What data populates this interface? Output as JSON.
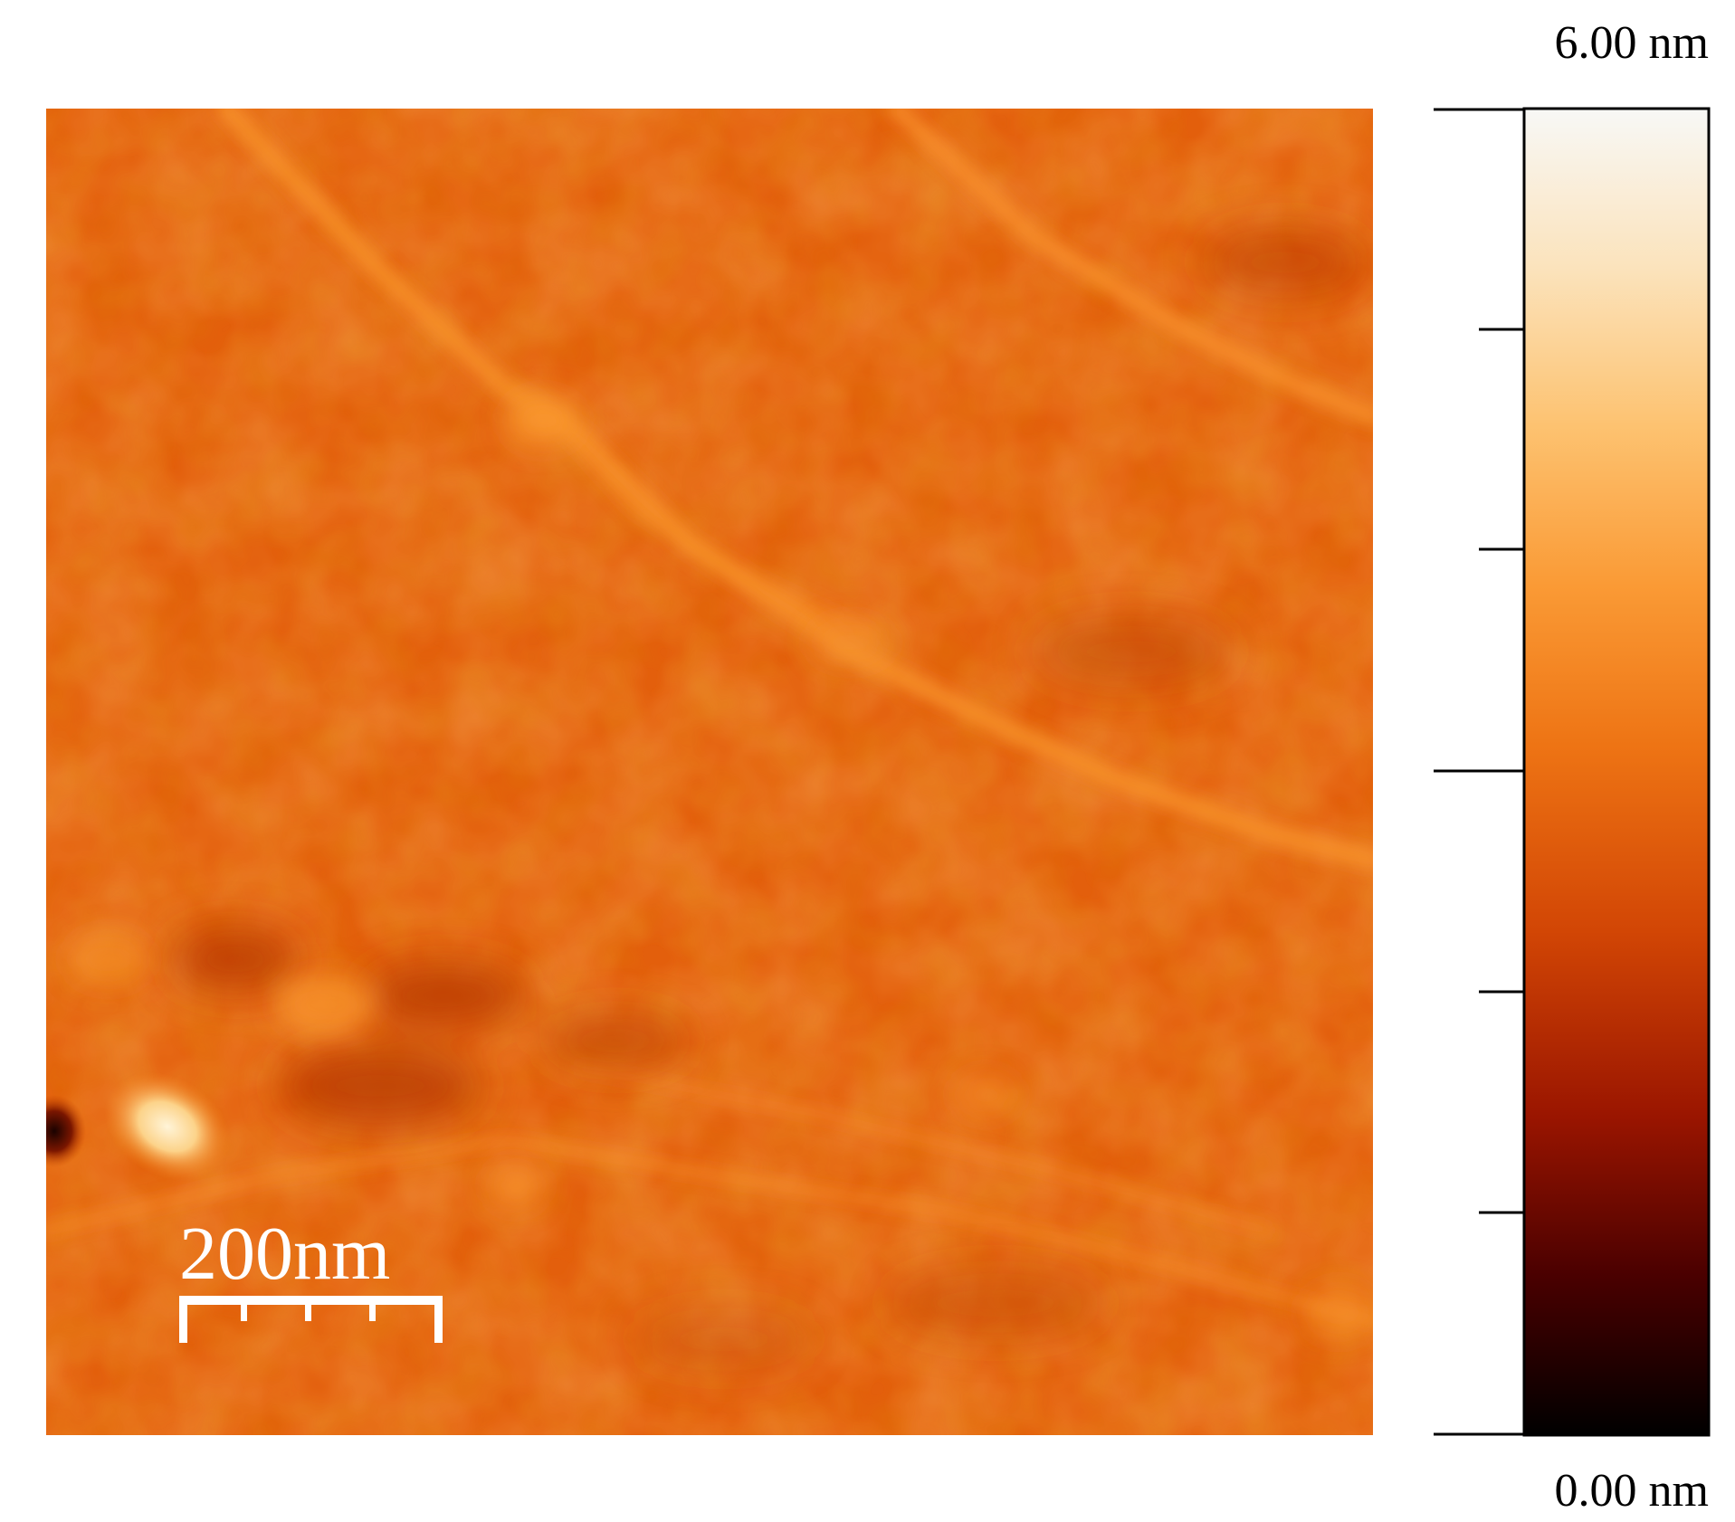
{
  "afm_image": {
    "description_colors": {
      "base": "#E35F0C",
      "ridge": "#F5851F",
      "bright_spot": "#FDE7B8",
      "dark_pit": "#3A0A00"
    }
  },
  "scale_bar": {
    "label": "200nm",
    "color": "#ffffff"
  },
  "colorbar": {
    "max_label": "6.00 nm",
    "min_label": "0.00 nm",
    "range": [
      0,
      6
    ],
    "unit": "nm",
    "stops": [
      "#000000",
      "#5A0000",
      "#A01A00",
      "#D84A05",
      "#F07A18",
      "#FA9A35",
      "#FDC270",
      "#FCE5BE",
      "#F8F8F8"
    ]
  }
}
